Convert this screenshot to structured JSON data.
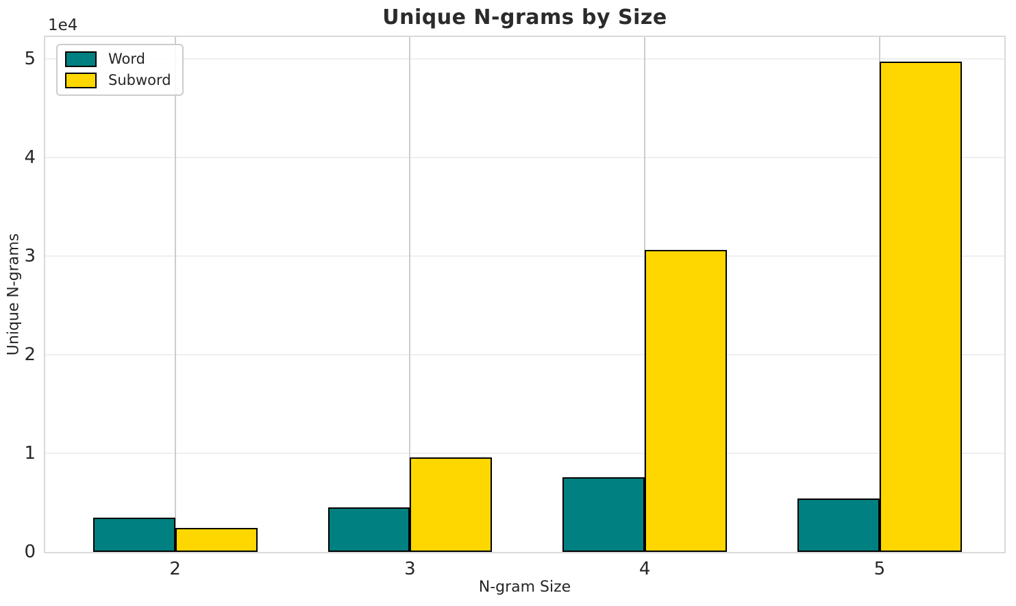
{
  "title": "Unique N-grams by Size",
  "axes": {
    "x_label": "N-gram Size",
    "y_label": "Unique N-grams",
    "offset_text": "1e4",
    "x_tick_labels": [
      "2",
      "3",
      "4",
      "5"
    ],
    "y_tick_labels": [
      "0",
      "1",
      "2",
      "3",
      "4",
      "5"
    ]
  },
  "legend": {
    "items": [
      {
        "label": "Word",
        "color": "#008080"
      },
      {
        "label": "Subword",
        "color": "#FFD700"
      }
    ]
  },
  "chart_data": {
    "type": "bar",
    "title": "Unique N-grams by Size",
    "xlabel": "N-gram Size",
    "ylabel": "Unique N-grams",
    "categories": [
      "2",
      "3",
      "4",
      "5"
    ],
    "series": [
      {
        "name": "Word",
        "color": "#008080",
        "values": [
          3500,
          4500,
          7600,
          5400
        ]
      },
      {
        "name": "Subword",
        "color": "#FFD700",
        "values": [
          2400,
          9600,
          30600,
          49700
        ]
      }
    ],
    "ylim": [
      0,
      52200
    ],
    "y_tick_step": 10000,
    "y_scale_label": "1e4",
    "grid": true,
    "legend_position": "upper left",
    "bar_edge_color": "#000000"
  }
}
